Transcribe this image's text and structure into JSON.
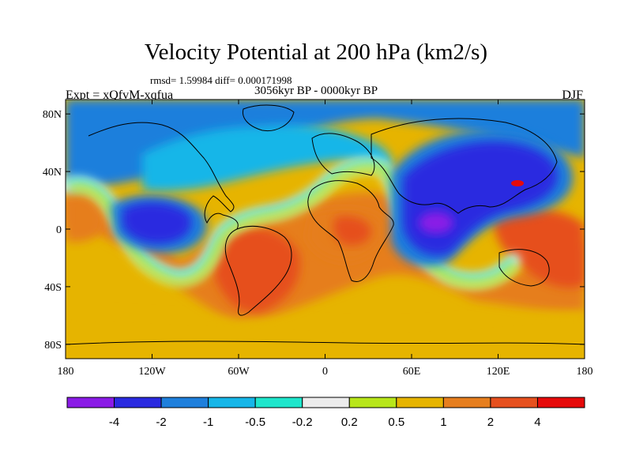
{
  "header": {
    "title": "Velocity Potential at 200 hPa (km2/s)",
    "stats": "rmsd= 1.59984  diff= 0.000171998",
    "period": "3056kyr BP - 0000kyr BP",
    "experiment": "Expt = xQfvM-xqfua",
    "season": "DJF"
  },
  "chart_data": {
    "type": "heatmap",
    "title": "Velocity Potential at 200 hPa (km2/s)",
    "subtitle": "3056kyr BP - 0000kyr BP",
    "xlabel": "",
    "ylabel": "",
    "xlim": [
      -180,
      180
    ],
    "ylim": [
      -90,
      90
    ],
    "x_ticks": [
      {
        "value": -180,
        "label": "180"
      },
      {
        "value": -120,
        "label": "120W"
      },
      {
        "value": -60,
        "label": "60W"
      },
      {
        "value": 0,
        "label": "0"
      },
      {
        "value": 60,
        "label": "60E"
      },
      {
        "value": 120,
        "label": "120E"
      },
      {
        "value": 180,
        "label": "180"
      }
    ],
    "y_ticks": [
      {
        "value": 80,
        "label": "80N"
      },
      {
        "value": 40,
        "label": "40N"
      },
      {
        "value": 0,
        "label": "0"
      },
      {
        "value": -40,
        "label": "40S"
      },
      {
        "value": -80,
        "label": "80S"
      }
    ],
    "colorbar": {
      "levels": [
        "-4",
        "-2",
        "-1",
        "-0.5",
        "-0.2",
        "0.2",
        "0.5",
        "1",
        "2",
        "4"
      ],
      "colors": [
        "#8a1be6",
        "#2a2ae0",
        "#1e7fdc",
        "#16b6e8",
        "#1ee6cc",
        "#ececec",
        "#b8e61a",
        "#e6b400",
        "#e67e1e",
        "#e6501e",
        "#e60a0a"
      ]
    },
    "regions": [
      {
        "name": "Northern high-latitude band",
        "level": "-1"
      },
      {
        "name": "Asia / Indian Ocean minimum (core near 80E, 0)",
        "level": "-4"
      },
      {
        "name": "Eastern Pacific minimum (near 140W, 5N)",
        "level": "-2"
      },
      {
        "name": "South America maximum",
        "level": "4"
      },
      {
        "name": "Africa / Atlantic positive region",
        "level": "2"
      },
      {
        "name": "Western Pacific maximum (near 150E, 10S)",
        "level": "4"
      },
      {
        "name": "Southern Ocean band",
        "level": "1"
      }
    ]
  }
}
